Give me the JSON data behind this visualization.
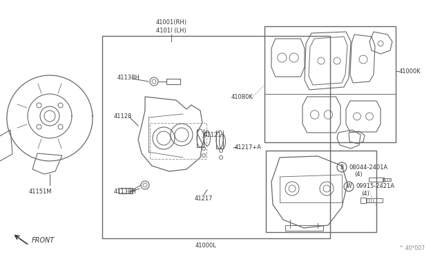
{
  "background_color": "#ffffff",
  "figure_width": 6.4,
  "figure_height": 3.72,
  "dpi": 100,
  "parts": {
    "41001_RH": "41001(RH)",
    "41011_LH": "4101I (LH)",
    "41138H_top": "41138H",
    "41128": "41128",
    "41138H_bot": "41138H",
    "41121": "41121",
    "41080K": "41080K",
    "41000K": "41000K",
    "41217plus": "41217+A",
    "41217": "41217",
    "41000L": "41000L",
    "41151M": "41151M",
    "08044": "08044-2401A",
    "08044_qty": "(4)",
    "09915": "09915-2421A",
    "09915_qty": "(4)",
    "diagram_ref": "^ 40*007",
    "B_sym": "B",
    "W_sym": "W",
    "FRONT": "FRONT"
  },
  "line_color": "#666666",
  "text_color": "#333333"
}
